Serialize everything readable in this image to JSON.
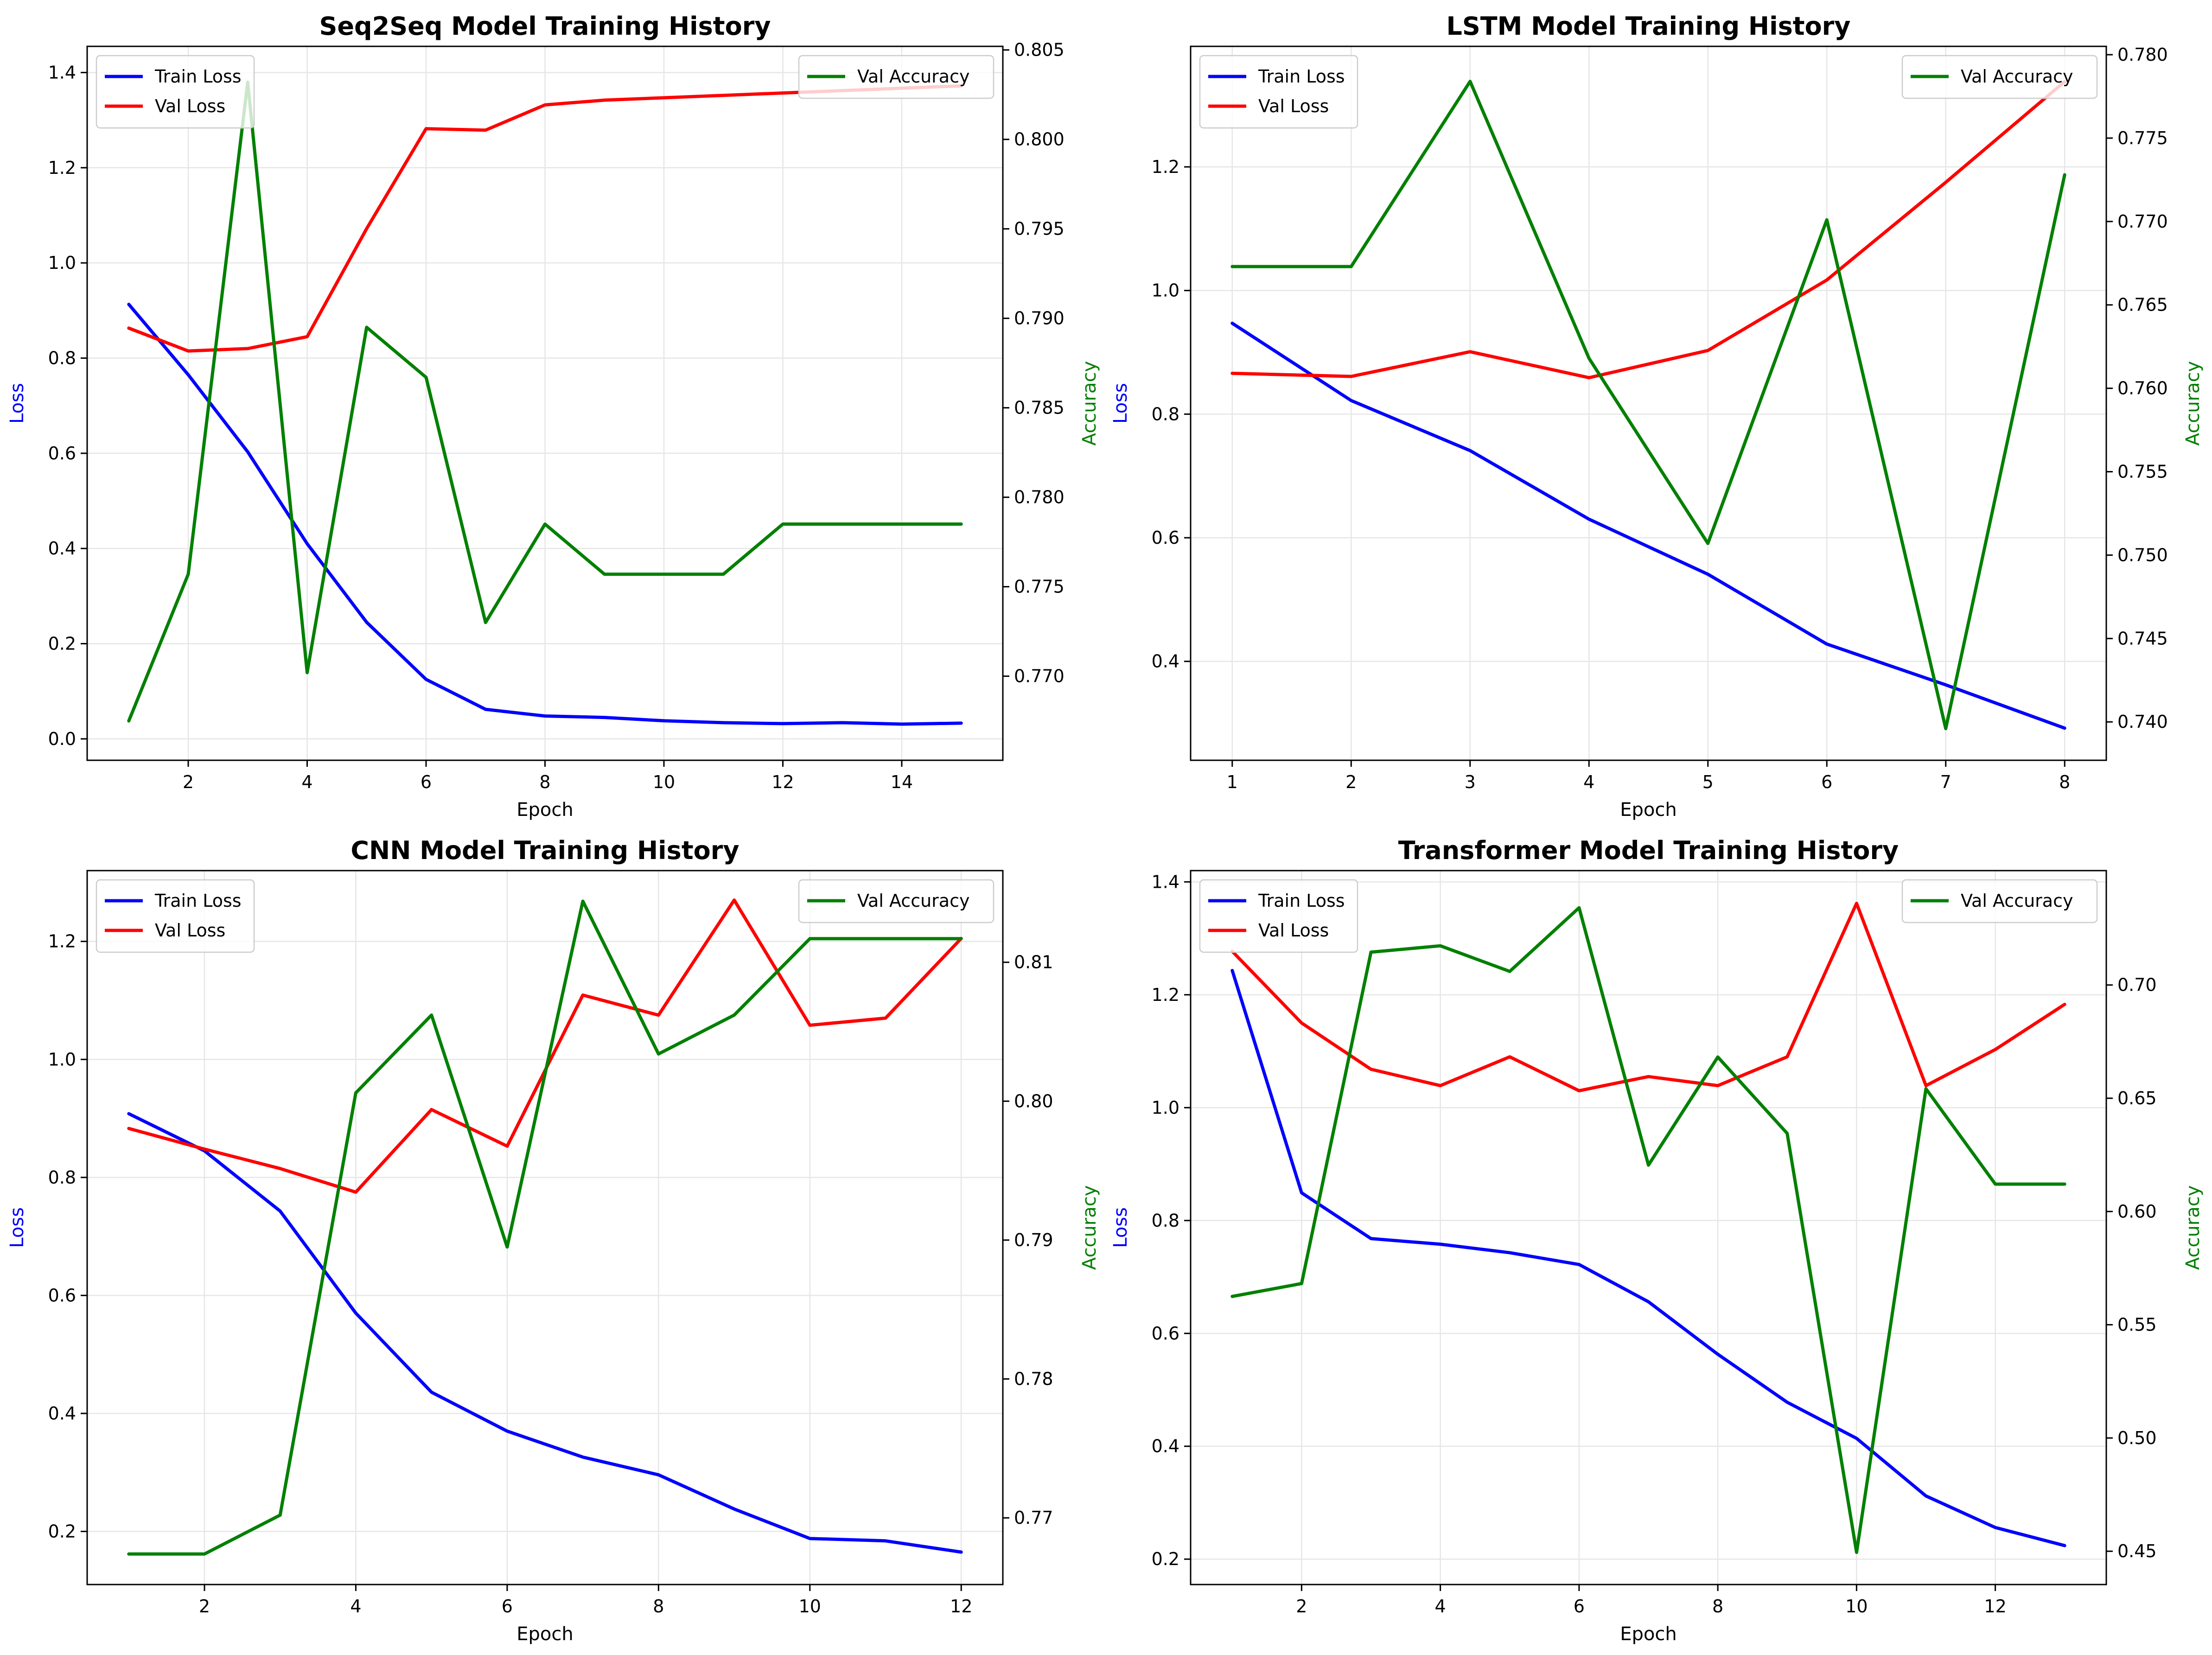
{
  "chart_data": [
    {
      "type": "line",
      "title": "Seq2Seq Model Training History",
      "xlabel": "Epoch",
      "ylabel": "Loss",
      "y2label": "Accuracy",
      "grid": true,
      "x": [
        1,
        2,
        3,
        4,
        5,
        6,
        7,
        8,
        9,
        10,
        11,
        12,
        13,
        14,
        15
      ],
      "xlim": [
        0.3,
        15.7
      ],
      "xticks": [
        2,
        4,
        6,
        8,
        10,
        12,
        14
      ],
      "ylim": [
        -0.045,
        1.455
      ],
      "yticks": [
        0.0,
        0.2,
        0.4,
        0.6,
        0.8,
        1.0,
        1.2,
        1.4
      ],
      "y2lim": [
        0.7653,
        0.8052
      ],
      "y2ticks": [
        0.77,
        0.775,
        0.78,
        0.785,
        0.79,
        0.795,
        0.8,
        0.805
      ],
      "legend_left": "top-left",
      "legend_right": "top-right",
      "series": [
        {
          "name": "Train Loss",
          "axis": "left",
          "color": "#0000ff",
          "values": [
            0.913,
            0.765,
            0.603,
            0.41,
            0.245,
            0.125,
            0.062,
            0.048,
            0.045,
            0.038,
            0.034,
            0.032,
            0.034,
            0.031,
            0.033
          ]
        },
        {
          "name": "Val Loss",
          "axis": "left",
          "color": "#ff0000",
          "values": [
            0.863,
            0.815,
            0.82,
            0.845,
            1.072,
            1.282,
            1.279,
            1.332,
            1.342,
            1.347,
            1.352,
            1.357,
            1.362,
            1.367,
            1.372
          ]
        },
        {
          "name": "Val Accuracy",
          "axis": "right",
          "color": "#008000",
          "values": [
            0.7675,
            0.7757,
            0.8032,
            0.7702,
            0.7895,
            0.7867,
            0.773,
            0.7785,
            0.7757,
            0.7757,
            0.7757,
            0.7785,
            0.7785,
            0.7785,
            0.7785
          ]
        }
      ]
    },
    {
      "type": "line",
      "title": "LSTM Model Training History",
      "xlabel": "Epoch",
      "ylabel": "Loss",
      "y2label": "Accuracy",
      "grid": true,
      "x": [
        1,
        2,
        3,
        4,
        5,
        6,
        7,
        8
      ],
      "xlim": [
        0.65,
        8.35
      ],
      "xticks": [
        1,
        2,
        3,
        4,
        5,
        6,
        7,
        8
      ],
      "ylim": [
        0.24,
        1.395
      ],
      "yticks": [
        0.4,
        0.6,
        0.8,
        1.0,
        1.2
      ],
      "y2lim": [
        0.7377,
        0.7805
      ],
      "y2ticks": [
        0.74,
        0.745,
        0.75,
        0.755,
        0.76,
        0.765,
        0.77,
        0.775,
        0.78
      ],
      "legend_left": "top-left",
      "legend_right": "top-right",
      "series": [
        {
          "name": "Train Loss",
          "axis": "left",
          "color": "#0000ff",
          "values": [
            0.947,
            0.822,
            0.741,
            0.63,
            0.541,
            0.428,
            0.362,
            0.292
          ]
        },
        {
          "name": "Val Loss",
          "axis": "left",
          "color": "#ff0000",
          "values": [
            0.866,
            0.861,
            0.901,
            0.859,
            0.903,
            1.017,
            1.175,
            1.338
          ]
        },
        {
          "name": "Val Accuracy",
          "axis": "right",
          "color": "#008000",
          "values": [
            0.7673,
            0.7673,
            0.7784,
            0.7618,
            0.7507,
            0.7701,
            0.7396,
            0.7728
          ]
        }
      ]
    },
    {
      "type": "line",
      "title": "CNN Model Training History",
      "xlabel": "Epoch",
      "ylabel": "Loss",
      "y2label": "Accuracy",
      "grid": true,
      "x": [
        1,
        2,
        3,
        4,
        5,
        6,
        7,
        8,
        9,
        10,
        11,
        12
      ],
      "xlim": [
        0.45,
        12.55
      ],
      "xticks": [
        2,
        4,
        6,
        8,
        10,
        12
      ],
      "ylim": [
        0.11,
        1.32
      ],
      "yticks": [
        0.2,
        0.4,
        0.6,
        0.8,
        1.0,
        1.2
      ],
      "y2lim": [
        0.7652,
        0.8166
      ],
      "y2ticks": [
        0.77,
        0.78,
        0.79,
        0.8,
        0.81
      ],
      "legend_left": "top-left",
      "legend_right": "top-right",
      "series": [
        {
          "name": "Train Loss",
          "axis": "left",
          "color": "#0000ff",
          "values": [
            0.908,
            0.845,
            0.743,
            0.57,
            0.436,
            0.37,
            0.326,
            0.296,
            0.238,
            0.188,
            0.184,
            0.165
          ]
        },
        {
          "name": "Val Loss",
          "axis": "left",
          "color": "#ff0000",
          "values": [
            0.883,
            0.848,
            0.815,
            0.775,
            0.915,
            0.853,
            1.109,
            1.075,
            1.27,
            1.058,
            1.07,
            1.205
          ]
        },
        {
          "name": "Val Accuracy",
          "axis": "right",
          "color": "#008000",
          "values": [
            0.7674,
            0.7674,
            0.7702,
            0.8006,
            0.8062,
            0.7895,
            0.8144,
            0.8034,
            0.8062,
            0.8117,
            0.8117,
            0.8117
          ]
        }
      ]
    },
    {
      "type": "line",
      "title": "Transformer Model Training History",
      "xlabel": "Epoch",
      "ylabel": "Loss",
      "y2label": "Accuracy",
      "grid": true,
      "x": [
        1,
        2,
        3,
        4,
        5,
        6,
        7,
        8,
        9,
        10,
        11,
        12,
        13
      ],
      "xlim": [
        0.4,
        13.6
      ],
      "xticks": [
        2,
        4,
        6,
        8,
        10,
        12
      ],
      "ylim": [
        0.155,
        1.42
      ],
      "yticks": [
        0.2,
        0.4,
        0.6,
        0.8,
        1.0,
        1.2,
        1.4
      ],
      "y2lim": [
        0.4353,
        0.7505
      ],
      "y2ticks": [
        0.45,
        0.5,
        0.55,
        0.6,
        0.65,
        0.7
      ],
      "legend_left": "top-left",
      "legend_right": "top-right",
      "series": [
        {
          "name": "Train Loss",
          "axis": "left",
          "color": "#0000ff",
          "values": [
            1.243,
            0.849,
            0.768,
            0.758,
            0.743,
            0.722,
            0.656,
            0.563,
            0.478,
            0.414,
            0.312,
            0.256,
            0.224
          ]
        },
        {
          "name": "Val Loss",
          "axis": "left",
          "color": "#ff0000",
          "values": [
            1.277,
            1.15,
            1.068,
            1.039,
            1.09,
            1.03,
            1.055,
            1.039,
            1.09,
            1.362,
            1.039,
            1.103,
            1.183
          ]
        },
        {
          "name": "Val Accuracy",
          "axis": "right",
          "color": "#008000",
          "values": [
            0.5625,
            0.5682,
            0.7145,
            0.7173,
            0.706,
            0.7341,
            0.6205,
            0.6682,
            0.6345,
            0.4495,
            0.6542,
            0.6121,
            0.6121
          ]
        }
      ]
    }
  ]
}
